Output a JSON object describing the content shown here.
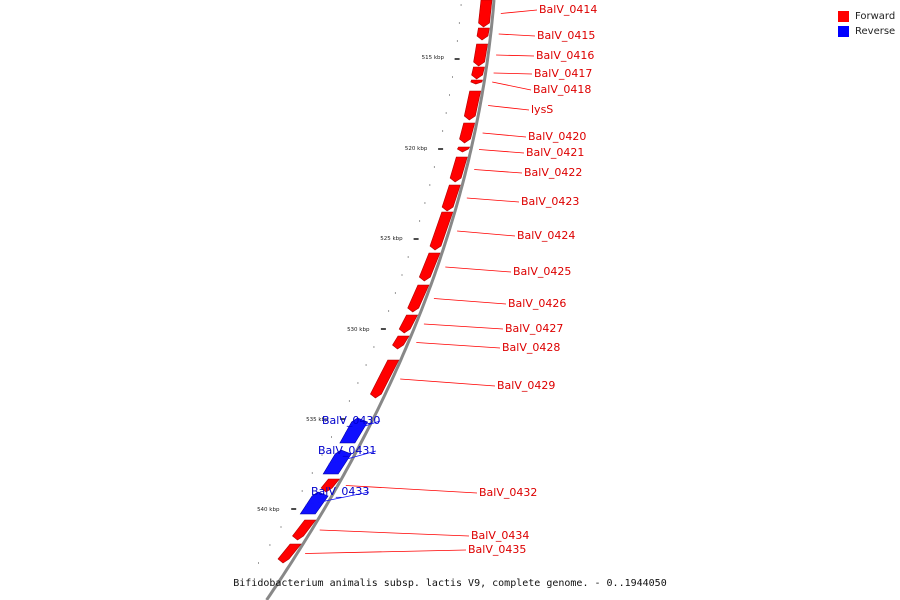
{
  "caption": "Bifidobacterium animalis subsp. lactis V9, complete genome. - 0..1944050",
  "legend": {
    "items": [
      {
        "label": "Forward",
        "color": "#ff0000"
      },
      {
        "label": "Reverse",
        "color": "#0000ff"
      }
    ]
  },
  "colors": {
    "forward": "#ff0000",
    "reverse": "#1010ff",
    "backbone": "#888888"
  },
  "scale_ticks": [
    "515 kbp",
    "520 kbp",
    "525 kbp",
    "530 kbp",
    "535 kbp",
    "540 kbp"
  ],
  "genes": [
    {
      "name": "BalV_0414",
      "strand": "forward"
    },
    {
      "name": "BalV_0415",
      "strand": "forward"
    },
    {
      "name": "BalV_0416",
      "strand": "forward"
    },
    {
      "name": "BalV_0417",
      "strand": "forward"
    },
    {
      "name": "BalV_0418",
      "strand": "forward"
    },
    {
      "name": "lysS",
      "strand": "forward"
    },
    {
      "name": "BalV_0420",
      "strand": "forward"
    },
    {
      "name": "BalV_0421",
      "strand": "forward"
    },
    {
      "name": "BalV_0422",
      "strand": "forward"
    },
    {
      "name": "BalV_0423",
      "strand": "forward"
    },
    {
      "name": "BalV_0424",
      "strand": "forward"
    },
    {
      "name": "BalV_0425",
      "strand": "forward"
    },
    {
      "name": "BalV_0426",
      "strand": "forward"
    },
    {
      "name": "BalV_0427",
      "strand": "forward"
    },
    {
      "name": "BalV_0428",
      "strand": "forward"
    },
    {
      "name": "BalV_0429",
      "strand": "forward"
    },
    {
      "name": "BalV_0430",
      "strand": "reverse"
    },
    {
      "name": "BalV_0431",
      "strand": "reverse"
    },
    {
      "name": "BalV_0432",
      "strand": "forward"
    },
    {
      "name": "BalV_0433",
      "strand": "reverse"
    },
    {
      "name": "BalV_0434",
      "strand": "forward"
    },
    {
      "name": "BalV_0435",
      "strand": "forward"
    }
  ]
}
